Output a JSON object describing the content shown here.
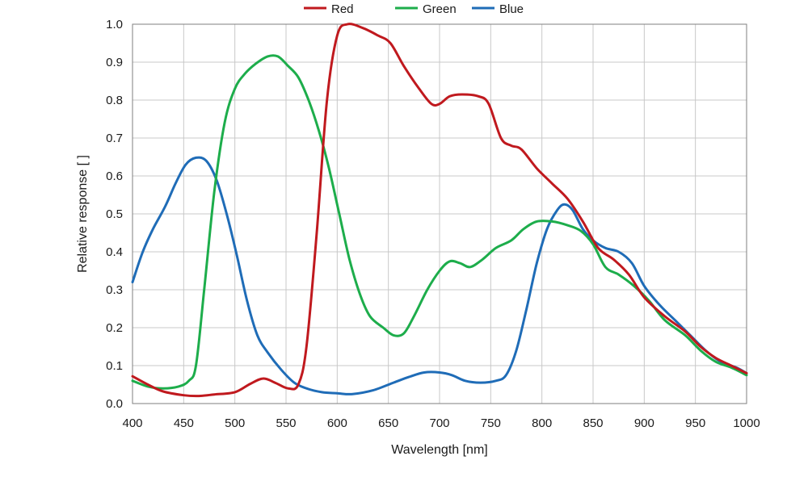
{
  "chart_data": {
    "type": "line",
    "xlabel": "Wavelength [nm]",
    "ylabel": "Relative response [ ]",
    "xlim": [
      400,
      1000
    ],
    "ylim": [
      0.0,
      1.0
    ],
    "xticks": [
      "400",
      "450",
      "500",
      "550",
      "600",
      "650",
      "700",
      "750",
      "800",
      "850",
      "900",
      "950",
      "1000"
    ],
    "yticks": [
      "0.0",
      "0.1",
      "0.2",
      "0.3",
      "0.4",
      "0.5",
      "0.6",
      "0.7",
      "0.8",
      "0.9",
      "1.0"
    ],
    "grid": true,
    "legend_position": "top",
    "series": [
      {
        "name": "Red",
        "color": "#c0191e",
        "points": [
          [
            400,
            0.072
          ],
          [
            415,
            0.05
          ],
          [
            430,
            0.032
          ],
          [
            450,
            0.022
          ],
          [
            465,
            0.02
          ],
          [
            480,
            0.024
          ],
          [
            500,
            0.03
          ],
          [
            515,
            0.052
          ],
          [
            528,
            0.066
          ],
          [
            540,
            0.054
          ],
          [
            552,
            0.04
          ],
          [
            562,
            0.05
          ],
          [
            570,
            0.15
          ],
          [
            580,
            0.45
          ],
          [
            590,
            0.8
          ],
          [
            600,
            0.97
          ],
          [
            610,
            1.0
          ],
          [
            625,
            0.99
          ],
          [
            640,
            0.97
          ],
          [
            652,
            0.95
          ],
          [
            665,
            0.89
          ],
          [
            680,
            0.83
          ],
          [
            692,
            0.79
          ],
          [
            700,
            0.79
          ],
          [
            710,
            0.81
          ],
          [
            722,
            0.815
          ],
          [
            738,
            0.81
          ],
          [
            748,
            0.79
          ],
          [
            760,
            0.7
          ],
          [
            770,
            0.68
          ],
          [
            780,
            0.67
          ],
          [
            795,
            0.62
          ],
          [
            810,
            0.58
          ],
          [
            825,
            0.54
          ],
          [
            840,
            0.48
          ],
          [
            855,
            0.41
          ],
          [
            870,
            0.38
          ],
          [
            885,
            0.34
          ],
          [
            900,
            0.28
          ],
          [
            920,
            0.23
          ],
          [
            940,
            0.19
          ],
          [
            955,
            0.15
          ],
          [
            970,
            0.12
          ],
          [
            985,
            0.1
          ],
          [
            1000,
            0.08
          ]
        ]
      },
      {
        "name": "Green",
        "color": "#1dad4b",
        "points": [
          [
            400,
            0.06
          ],
          [
            415,
            0.045
          ],
          [
            430,
            0.04
          ],
          [
            445,
            0.045
          ],
          [
            455,
            0.06
          ],
          [
            462,
            0.1
          ],
          [
            470,
            0.3
          ],
          [
            480,
            0.56
          ],
          [
            490,
            0.74
          ],
          [
            500,
            0.83
          ],
          [
            510,
            0.87
          ],
          [
            520,
            0.895
          ],
          [
            532,
            0.915
          ],
          [
            542,
            0.915
          ],
          [
            552,
            0.89
          ],
          [
            562,
            0.86
          ],
          [
            572,
            0.8
          ],
          [
            582,
            0.72
          ],
          [
            592,
            0.62
          ],
          [
            602,
            0.5
          ],
          [
            612,
            0.38
          ],
          [
            622,
            0.29
          ],
          [
            632,
            0.23
          ],
          [
            645,
            0.2
          ],
          [
            655,
            0.18
          ],
          [
            665,
            0.185
          ],
          [
            675,
            0.23
          ],
          [
            688,
            0.3
          ],
          [
            700,
            0.35
          ],
          [
            710,
            0.375
          ],
          [
            720,
            0.37
          ],
          [
            730,
            0.36
          ],
          [
            742,
            0.38
          ],
          [
            755,
            0.41
          ],
          [
            770,
            0.43
          ],
          [
            782,
            0.46
          ],
          [
            795,
            0.48
          ],
          [
            810,
            0.48
          ],
          [
            825,
            0.47
          ],
          [
            838,
            0.455
          ],
          [
            850,
            0.42
          ],
          [
            862,
            0.36
          ],
          [
            875,
            0.34
          ],
          [
            890,
            0.31
          ],
          [
            905,
            0.27
          ],
          [
            920,
            0.22
          ],
          [
            940,
            0.18
          ],
          [
            955,
            0.14
          ],
          [
            970,
            0.11
          ],
          [
            985,
            0.095
          ],
          [
            1000,
            0.075
          ]
        ]
      },
      {
        "name": "Blue",
        "color": "#1f6cb7",
        "points": [
          [
            400,
            0.32
          ],
          [
            410,
            0.4
          ],
          [
            420,
            0.46
          ],
          [
            432,
            0.52
          ],
          [
            442,
            0.58
          ],
          [
            452,
            0.63
          ],
          [
            462,
            0.648
          ],
          [
            472,
            0.64
          ],
          [
            482,
            0.59
          ],
          [
            492,
            0.5
          ],
          [
            502,
            0.39
          ],
          [
            512,
            0.27
          ],
          [
            522,
            0.18
          ],
          [
            532,
            0.135
          ],
          [
            545,
            0.09
          ],
          [
            558,
            0.055
          ],
          [
            570,
            0.04
          ],
          [
            585,
            0.03
          ],
          [
            600,
            0.027
          ],
          [
            615,
            0.025
          ],
          [
            635,
            0.035
          ],
          [
            655,
            0.055
          ],
          [
            670,
            0.07
          ],
          [
            685,
            0.082
          ],
          [
            700,
            0.082
          ],
          [
            712,
            0.075
          ],
          [
            725,
            0.06
          ],
          [
            740,
            0.055
          ],
          [
            755,
            0.06
          ],
          [
            765,
            0.075
          ],
          [
            775,
            0.14
          ],
          [
            785,
            0.25
          ],
          [
            795,
            0.37
          ],
          [
            805,
            0.46
          ],
          [
            815,
            0.51
          ],
          [
            822,
            0.525
          ],
          [
            830,
            0.51
          ],
          [
            840,
            0.46
          ],
          [
            850,
            0.43
          ],
          [
            862,
            0.41
          ],
          [
            875,
            0.4
          ],
          [
            888,
            0.37
          ],
          [
            900,
            0.31
          ],
          [
            915,
            0.26
          ],
          [
            930,
            0.22
          ],
          [
            945,
            0.18
          ],
          [
            960,
            0.14
          ],
          [
            975,
            0.11
          ],
          [
            990,
            0.095
          ],
          [
            1000,
            0.08
          ]
        ]
      }
    ]
  }
}
